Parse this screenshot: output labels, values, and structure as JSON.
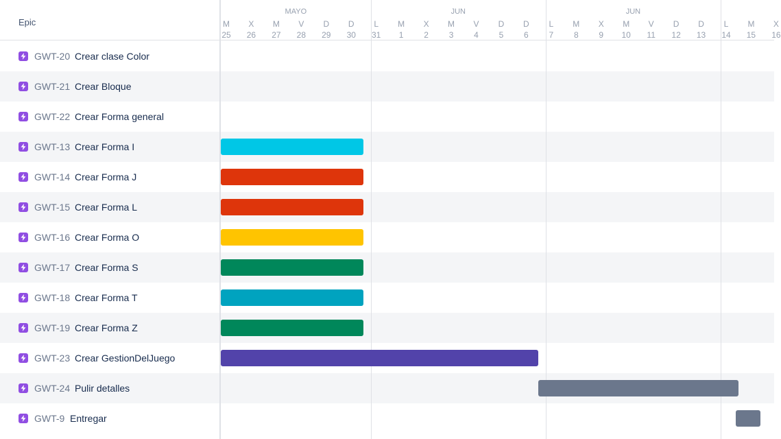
{
  "header": {
    "epic_column_label": "Epic"
  },
  "timeline": {
    "months": [
      {
        "label": "MAYO"
      },
      {
        "label": "JUN"
      },
      {
        "label": "JUN"
      }
    ],
    "days": [
      {
        "letter": "M",
        "number": "25"
      },
      {
        "letter": "X",
        "number": "26"
      },
      {
        "letter": "M",
        "number": "27"
      },
      {
        "letter": "V",
        "number": "28"
      },
      {
        "letter": "D",
        "number": "29"
      },
      {
        "letter": "D",
        "number": "30"
      },
      {
        "letter": "L",
        "number": "31"
      },
      {
        "letter": "M",
        "number": "1"
      },
      {
        "letter": "X",
        "number": "2"
      },
      {
        "letter": "M",
        "number": "3"
      },
      {
        "letter": "V",
        "number": "4"
      },
      {
        "letter": "D",
        "number": "5"
      },
      {
        "letter": "D",
        "number": "6"
      },
      {
        "letter": "L",
        "number": "7"
      },
      {
        "letter": "M",
        "number": "8"
      },
      {
        "letter": "X",
        "number": "9"
      },
      {
        "letter": "M",
        "number": "10"
      },
      {
        "letter": "V",
        "number": "11"
      },
      {
        "letter": "D",
        "number": "12"
      },
      {
        "letter": "D",
        "number": "13"
      },
      {
        "letter": "L",
        "number": "14"
      },
      {
        "letter": "M",
        "number": "15"
      },
      {
        "letter": "X",
        "number": "16"
      }
    ]
  },
  "epics": [
    {
      "key": "GWT-20",
      "title": "Crear clase Color"
    },
    {
      "key": "GWT-21",
      "title": "Crear Bloque"
    },
    {
      "key": "GWT-22",
      "title": "Crear Forma general"
    },
    {
      "key": "GWT-13",
      "title": "Crear Forma I",
      "color": "#00c7e6",
      "start": "25",
      "end": "30"
    },
    {
      "key": "GWT-14",
      "title": "Crear Forma J",
      "color": "#de350b",
      "start": "25",
      "end": "30"
    },
    {
      "key": "GWT-15",
      "title": "Crear Forma L",
      "color": "#de350b",
      "start": "25",
      "end": "30"
    },
    {
      "key": "GWT-16",
      "title": "Crear Forma O",
      "color": "#ffc400",
      "start": "25",
      "end": "30"
    },
    {
      "key": "GWT-17",
      "title": "Crear Forma S",
      "color": "#00875a",
      "start": "25",
      "end": "30"
    },
    {
      "key": "GWT-18",
      "title": "Crear Forma T",
      "color": "#00a3bf",
      "start": "25",
      "end": "30"
    },
    {
      "key": "GWT-19",
      "title": "Crear Forma Z",
      "color": "#00875a",
      "start": "25",
      "end": "30"
    },
    {
      "key": "GWT-23",
      "title": "Crear GestionDelJuego",
      "color": "#5243aa",
      "start": "25",
      "end": "6"
    },
    {
      "key": "GWT-24",
      "title": "Pulir detalles",
      "color": "#6b778c",
      "start": "7",
      "end": "14"
    },
    {
      "key": "GWT-9",
      "title": "Entregar",
      "color": "#6b778c",
      "start": "14",
      "end": "14"
    }
  ]
}
